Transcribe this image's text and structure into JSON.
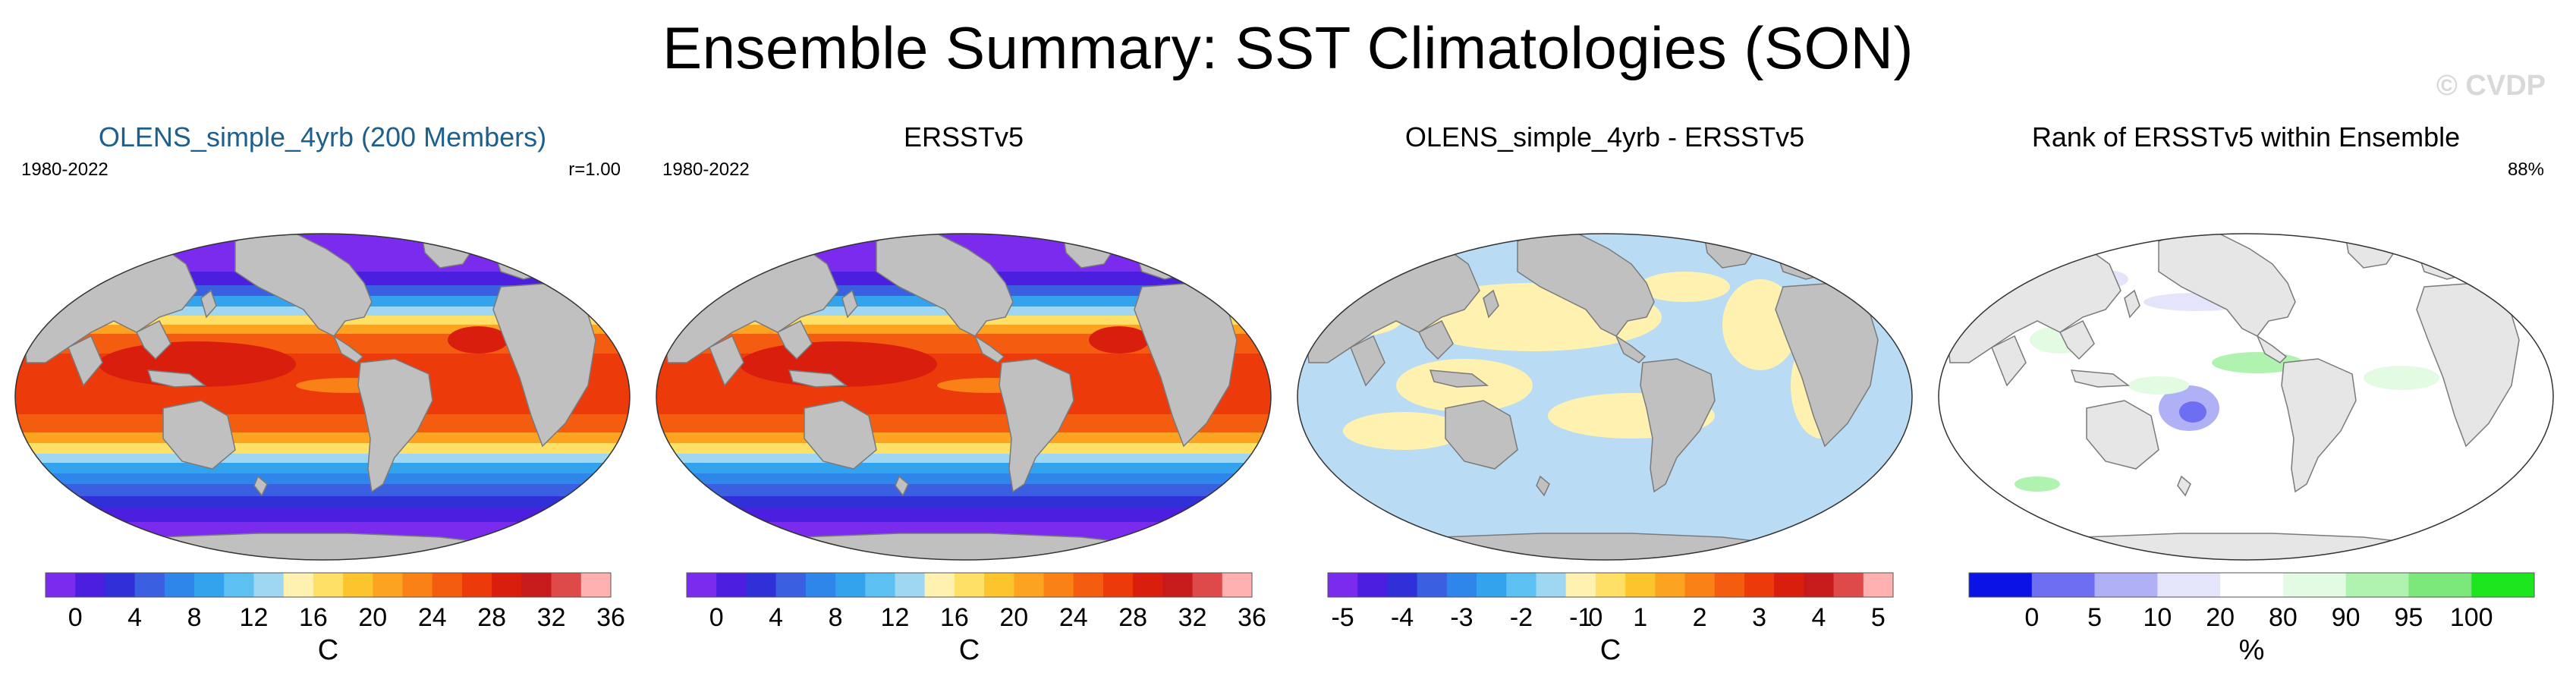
{
  "figure": {
    "title": "Ensemble Summary: SST Climatologies (SON)",
    "watermark": "© CVDP"
  },
  "panels": [
    {
      "title": "OLENS_simple_4yrb (200 Members)",
      "left_label": "1980-2022",
      "right_label": "r=1.00",
      "colorbar": {
        "unit": "C",
        "ticks": [
          "0",
          "4",
          "8",
          "12",
          "16",
          "20",
          "24",
          "28",
          "32",
          "36"
        ],
        "colors": [
          "#7b2bed",
          "#4b1ee0",
          "#3030d8",
          "#3a5fe0",
          "#2f86ea",
          "#33a3ee",
          "#5cc0f2",
          "#9fd6f2",
          "#fff2b0",
          "#ffe066",
          "#fdc52d",
          "#fca321",
          "#f98116",
          "#f45d10",
          "#ec3a0a",
          "#d91e0e",
          "#c71a1a",
          "#de4a4a",
          "#ffb0b0"
        ]
      }
    },
    {
      "title": "ERSSTv5",
      "left_label": "1980-2022",
      "right_label": "",
      "colorbar": {
        "unit": "C",
        "ticks": [
          "0",
          "4",
          "8",
          "12",
          "16",
          "20",
          "24",
          "28",
          "32",
          "36"
        ],
        "colors": [
          "#7b2bed",
          "#4b1ee0",
          "#3030d8",
          "#3a5fe0",
          "#2f86ea",
          "#33a3ee",
          "#5cc0f2",
          "#9fd6f2",
          "#fff2b0",
          "#ffe066",
          "#fdc52d",
          "#fca321",
          "#f98116",
          "#f45d10",
          "#ec3a0a",
          "#d91e0e",
          "#c71a1a",
          "#de4a4a",
          "#ffb0b0"
        ]
      }
    },
    {
      "title": "OLENS_simple_4yrb - ERSSTv5",
      "left_label": "",
      "right_label": "",
      "colorbar": {
        "unit": "C",
        "ticks": [
          "-5",
          "-4",
          "-3",
          "-2",
          "-1",
          "0",
          "1",
          "2",
          "3",
          "4",
          "5"
        ],
        "colors": [
          "#7b2bed",
          "#4b1ee0",
          "#3030d8",
          "#3a5fe0",
          "#2f86ea",
          "#33a3ee",
          "#5cc0f2",
          "#9fd6f2",
          "#fff2b0",
          "#ffe066",
          "#fdc52d",
          "#fca321",
          "#f98116",
          "#f45d10",
          "#ec3a0a",
          "#d91e0e",
          "#c71a1a",
          "#de4a4a",
          "#ffb0b0"
        ]
      }
    },
    {
      "title": "Rank of ERSSTv5 within Ensemble",
      "left_label": "",
      "right_label": "88%",
      "colorbar": {
        "unit": "%",
        "ticks": [
          "0",
          "5",
          "10",
          "20",
          "80",
          "90",
          "95",
          "100"
        ],
        "colors": [
          "#0a12e6",
          "#6e6ef2",
          "#b0b0f6",
          "#e4e4fb",
          "#ffffff",
          "#e2fbe2",
          "#b0f2b0",
          "#7ce87c",
          "#1ee61e"
        ]
      }
    }
  ]
}
